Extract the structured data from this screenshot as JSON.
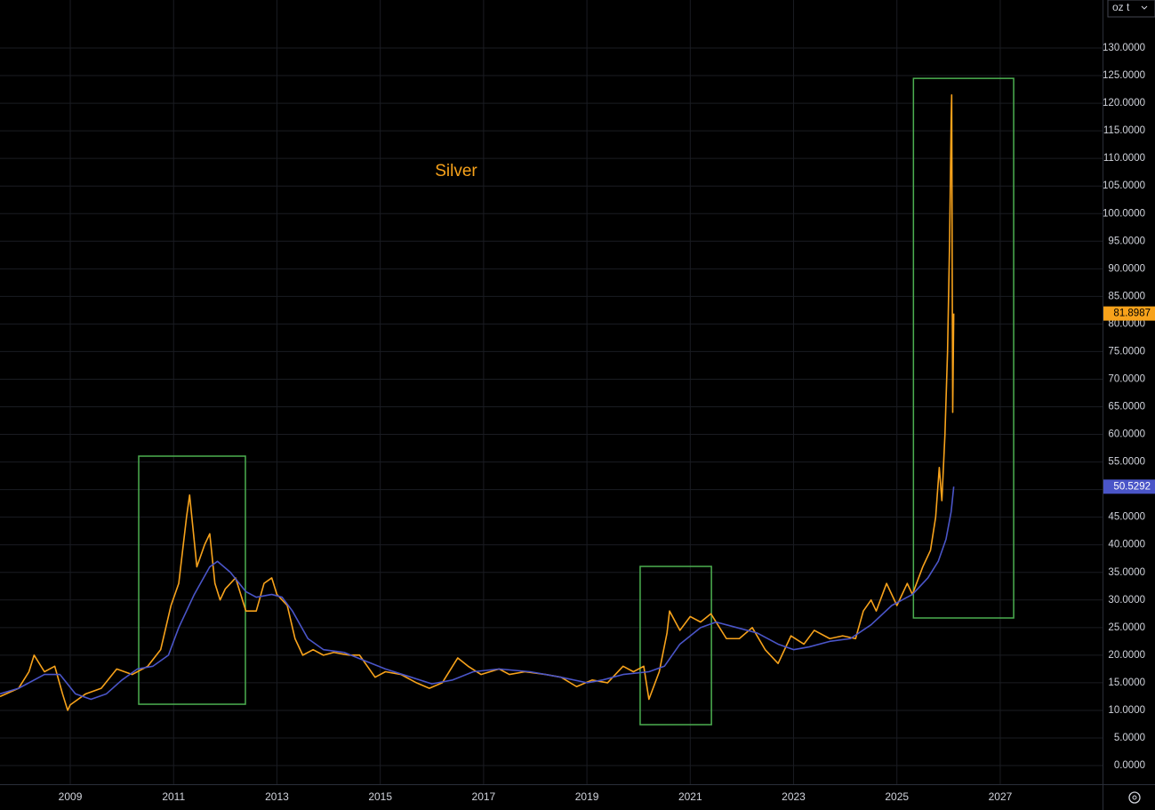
{
  "chart_data": {
    "type": "line",
    "title": "Silver",
    "unit_label": "oz t",
    "xlim": [
      2007.64,
      2028.98
    ],
    "ylim": [
      -3.38,
      138.7
    ],
    "xticks": [
      2009,
      2011,
      2013,
      2015,
      2017,
      2019,
      2021,
      2023,
      2025,
      2027
    ],
    "yticks": [
      {
        "value": 0,
        "label": "0.0000"
      },
      {
        "value": 5,
        "label": "5.0000"
      },
      {
        "value": 10,
        "label": "10.0000"
      },
      {
        "value": 15,
        "label": "15.0000"
      },
      {
        "value": 20,
        "label": "20.0000"
      },
      {
        "value": 25,
        "label": "25.0000"
      },
      {
        "value": 30,
        "label": "30.0000"
      },
      {
        "value": 35,
        "label": "35.0000"
      },
      {
        "value": 40,
        "label": "40.0000"
      },
      {
        "value": 45,
        "label": "45.0000"
      },
      {
        "value": 50,
        "label": "50.0000"
      },
      {
        "value": 55,
        "label": "55.0000"
      },
      {
        "value": 60,
        "label": "60.0000"
      },
      {
        "value": 65,
        "label": "65.0000"
      },
      {
        "value": 70,
        "label": "70.0000"
      },
      {
        "value": 75,
        "label": "75.0000"
      },
      {
        "value": 80,
        "label": "80.0000"
      },
      {
        "value": 85,
        "label": "85.0000"
      },
      {
        "value": 90,
        "label": "90.0000"
      },
      {
        "value": 95,
        "label": "95.0000"
      },
      {
        "value": 100,
        "label": "100.0000"
      },
      {
        "value": 105,
        "label": "105.0000"
      },
      {
        "value": 110,
        "label": "110.0000"
      },
      {
        "value": 115,
        "label": "115.0000"
      },
      {
        "value": 120,
        "label": "120.0000"
      },
      {
        "value": 125,
        "label": "125.0000"
      },
      {
        "value": 130,
        "label": "130.0000"
      }
    ],
    "grid": true,
    "series": [
      {
        "color": "#f7a21b",
        "x": [
          2007.64,
          2008.0,
          2008.2,
          2008.3,
          2008.5,
          2008.7,
          2008.85,
          2008.95,
          2009.0,
          2009.3,
          2009.6,
          2009.9,
          2010.2,
          2010.5,
          2010.75,
          2010.95,
          2011.1,
          2011.25,
          2011.31,
          2011.45,
          2011.6,
          2011.7,
          2011.8,
          2011.9,
          2012.0,
          2012.2,
          2012.4,
          2012.6,
          2012.75,
          2012.9,
          2013.0,
          2013.2,
          2013.35,
          2013.5,
          2013.7,
          2013.9,
          2014.1,
          2014.4,
          2014.6,
          2014.9,
          2015.1,
          2015.4,
          2015.7,
          2015.95,
          2016.2,
          2016.5,
          2016.7,
          2016.95,
          2017.3,
          2017.5,
          2017.8,
          2018.2,
          2018.5,
          2018.8,
          2019.1,
          2019.4,
          2019.7,
          2019.9,
          2020.1,
          2020.2,
          2020.4,
          2020.55,
          2020.6,
          2020.8,
          2021.0,
          2021.2,
          2021.4,
          2021.7,
          2021.95,
          2022.2,
          2022.45,
          2022.7,
          2022.95,
          2023.2,
          2023.4,
          2023.7,
          2023.95,
          2024.2,
          2024.35,
          2024.5,
          2024.6,
          2024.8,
          2025.0,
          2025.2,
          2025.3,
          2025.5,
          2025.65,
          2025.75,
          2025.82,
          2025.87,
          2025.93,
          2025.98,
          2026.02,
          2026.05,
          2026.06,
          2026.07,
          2026.08,
          2026.1
        ],
        "values": [
          12.5,
          14,
          17,
          20,
          17,
          18,
          13,
          10,
          11,
          13,
          14,
          17.5,
          16.5,
          18,
          21,
          29,
          33,
          45,
          49,
          36,
          40,
          42,
          33,
          30,
          32,
          34,
          28,
          28,
          33,
          34,
          31,
          29,
          23,
          20,
          21,
          20,
          20.5,
          20,
          20,
          16,
          17,
          16.5,
          15,
          14,
          15,
          19.5,
          18,
          16.5,
          17.5,
          16.5,
          17,
          16.5,
          16,
          14.3,
          15.5,
          15,
          18,
          17,
          18,
          12,
          17,
          24,
          28,
          24.5,
          27,
          26,
          27.5,
          23,
          23,
          25,
          21,
          18.5,
          23.5,
          22,
          24.5,
          23,
          23.5,
          23,
          28,
          30,
          28,
          33,
          29,
          33,
          31,
          36,
          39,
          45,
          54,
          48,
          60,
          75,
          95,
          117,
          121.5,
          90,
          64,
          81.8987
        ]
      },
      {
        "color": "#4a55c8",
        "x": [
          2007.64,
          2008.0,
          2008.5,
          2008.8,
          2009.1,
          2009.4,
          2009.7,
          2010.0,
          2010.3,
          2010.6,
          2010.9,
          2011.1,
          2011.4,
          2011.7,
          2011.85,
          2012.1,
          2012.4,
          2012.6,
          2012.9,
          2013.1,
          2013.3,
          2013.6,
          2013.9,
          2014.3,
          2014.7,
          2015.1,
          2015.6,
          2016.0,
          2016.4,
          2016.8,
          2017.3,
          2017.9,
          2018.5,
          2019.0,
          2019.3,
          2019.7,
          2020.2,
          2020.5,
          2020.8,
          2021.2,
          2021.5,
          2021.9,
          2022.3,
          2022.7,
          2023.0,
          2023.3,
          2023.7,
          2024.1,
          2024.5,
          2024.9,
          2025.3,
          2025.6,
          2025.8,
          2025.95,
          2026.05,
          2026.1
        ],
        "values": [
          13,
          14,
          16.5,
          16.5,
          13,
          12,
          13,
          15.5,
          17.5,
          18,
          20,
          25,
          31,
          36,
          37,
          35,
          31.5,
          30.5,
          31,
          30.5,
          28,
          23,
          21,
          20.5,
          19,
          17.5,
          16,
          14.8,
          15.5,
          17,
          17.5,
          17,
          16,
          15,
          15.5,
          16.5,
          17,
          18,
          22,
          25,
          26,
          25,
          24,
          22,
          21,
          21.5,
          22.5,
          23,
          25.5,
          29,
          31,
          34,
          37,
          41,
          46,
          50.5292
        ]
      }
    ],
    "highlights": [
      {
        "color": "#4caf50",
        "x": [
          2010.325,
          2012.39
        ],
        "y": [
          11.11,
          56.06
        ]
      },
      {
        "color": "#4caf50",
        "x": [
          2020.03,
          2021.41
        ],
        "y": [
          7.41,
          36.08
        ]
      },
      {
        "color": "#4caf50",
        "x": [
          2025.32,
          2027.26
        ],
        "y": [
          26.74,
          124.5
        ]
      }
    ]
  }
}
